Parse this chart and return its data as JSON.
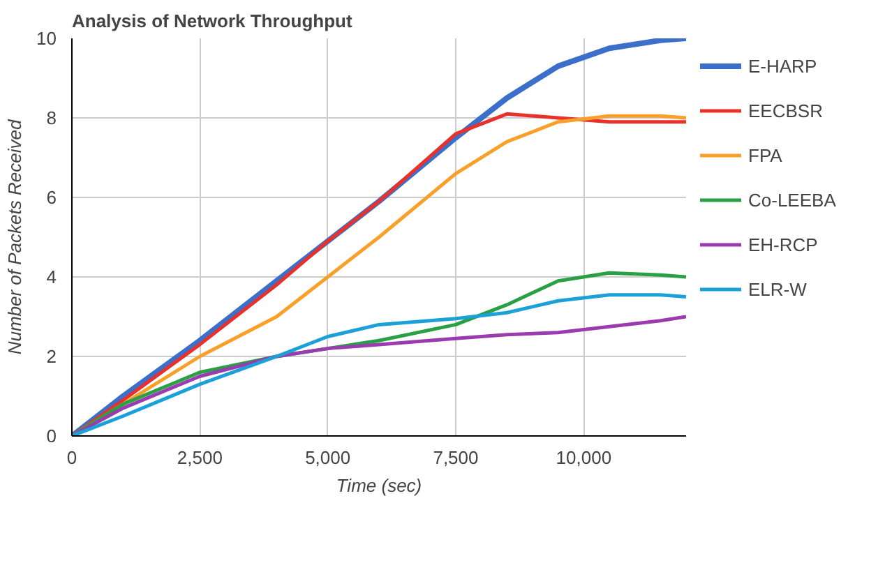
{
  "chart_data": {
    "type": "line",
    "title": "Analysis of Network Throughput",
    "xlabel": "Time (sec)",
    "ylabel": "Number of Packets Received",
    "xlim": [
      0,
      12000
    ],
    "ylim": [
      0,
      10
    ],
    "xticks": [
      0,
      {
        "value": 2500,
        "label": "2,500"
      },
      {
        "value": 5000,
        "label": "5,000"
      },
      {
        "value": 7500,
        "label": "7,500"
      },
      {
        "value": 10000,
        "label": "10,000"
      }
    ],
    "yticks": [
      0,
      2,
      4,
      6,
      8,
      10
    ],
    "grid": true,
    "legend": "right",
    "marker": "none",
    "line_style": "solid",
    "x": [
      0,
      1000,
      2500,
      4000,
      5000,
      6000,
      7500,
      8500,
      9500,
      10500,
      11500,
      12000
    ],
    "series": [
      {
        "name": "E-HARP",
        "color": "#3b6fc9",
        "values": [
          0,
          1.0,
          2.4,
          3.9,
          4.9,
          5.9,
          7.5,
          8.5,
          9.3,
          9.75,
          9.95,
          10
        ]
      },
      {
        "name": "EECBSR",
        "color": "#e8312a",
        "values": [
          0,
          0.9,
          2.3,
          3.8,
          4.9,
          5.9,
          7.6,
          8.1,
          8.0,
          7.9,
          7.9,
          7.9
        ]
      },
      {
        "name": "FPA",
        "color": "#f9a02a",
        "values": [
          0,
          0.8,
          2.0,
          3.0,
          4.0,
          5.0,
          6.6,
          7.4,
          7.9,
          8.05,
          8.05,
          8.0
        ]
      },
      {
        "name": "Co-LEEBA",
        "color": "#2aa044",
        "values": [
          0,
          0.8,
          1.6,
          2.0,
          2.2,
          2.4,
          2.8,
          3.3,
          3.9,
          4.1,
          4.05,
          4.0
        ]
      },
      {
        "name": "EH-RCP",
        "color": "#9a3cb0",
        "values": [
          0,
          0.7,
          1.5,
          2.0,
          2.2,
          2.3,
          2.45,
          2.55,
          2.6,
          2.75,
          2.9,
          3.0
        ]
      },
      {
        "name": "ELR-W",
        "color": "#1ba0d8",
        "values": [
          0,
          0.5,
          1.3,
          2.0,
          2.5,
          2.8,
          2.95,
          3.1,
          3.4,
          3.55,
          3.55,
          3.5
        ]
      }
    ]
  }
}
